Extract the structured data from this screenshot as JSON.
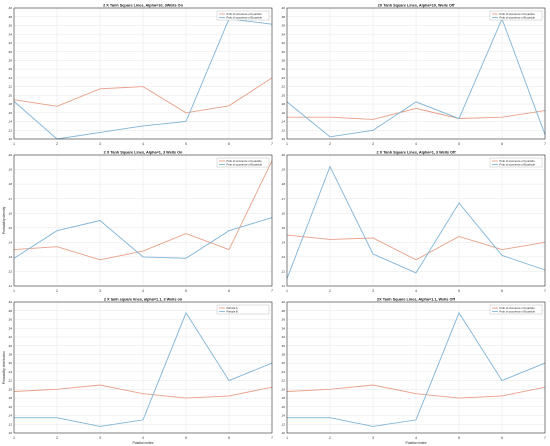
{
  "figure": {
    "background": "#ffffff"
  },
  "colors": {
    "series_a": "#e8a088",
    "series_b": "#7fb4d6",
    "axis": "#333333",
    "grid": "#e6e6e6"
  },
  "chart_data": [
    {
      "type": "line",
      "title": "2 X Tanh Square Lines, Alpha=10, 3Wells On",
      "xlabel": "",
      "ylabel": "",
      "x": [
        1,
        2,
        3,
        4,
        5,
        6,
        7
      ],
      "xlim": [
        1,
        7
      ],
      "ylim": [
        0.1,
        0.4
      ],
      "yticks": [
        0.1,
        0.12,
        0.14,
        0.16,
        0.18,
        0.2,
        0.22,
        0.24,
        0.26,
        0.28,
        0.3,
        0.32,
        0.34,
        0.36,
        0.38,
        0.4
      ],
      "grid": true,
      "legend": "top-right",
      "series": [
        {
          "name": "Prob of occurence of A particle",
          "color": "#e8a088",
          "values": [
            0.19,
            0.175,
            0.215,
            0.22,
            0.16,
            0.176,
            0.24
          ]
        },
        {
          "name": "Prob of occurence of B particle",
          "color": "#7fb4d6",
          "values": [
            0.186,
            0.1,
            0.115,
            0.13,
            0.14,
            0.375,
            0.363
          ]
        }
      ]
    },
    {
      "type": "line",
      "title": "2X Tanh Square Lines, Alpha=10, Wells Off",
      "xlabel": "",
      "ylabel": "",
      "x": [
        1,
        2,
        3,
        4,
        5,
        6,
        7
      ],
      "xlim": [
        1,
        7
      ],
      "ylim": [
        0.1,
        0.4
      ],
      "yticks": [
        0.1,
        0.12,
        0.14,
        0.16,
        0.18,
        0.2,
        0.22,
        0.24,
        0.26,
        0.28,
        0.3,
        0.32,
        0.34,
        0.36,
        0.38,
        0.4
      ],
      "grid": true,
      "legend": "top-right",
      "series": [
        {
          "name": "Prob of occurence of A particle",
          "color": "#e8a088",
          "values": [
            0.15,
            0.15,
            0.145,
            0.17,
            0.147,
            0.15,
            0.165
          ]
        },
        {
          "name": "Prob of occurence of B particle",
          "color": "#7fb4d6",
          "values": [
            0.185,
            0.105,
            0.12,
            0.185,
            0.147,
            0.375,
            0.11
          ]
        }
      ]
    },
    {
      "type": "line",
      "title": "2 X Tanh Square Lines, Alpha=1, 3 Wells On",
      "xlabel": "",
      "ylabel": "Probability density",
      "x": [
        1,
        2,
        3,
        4,
        5,
        6,
        7
      ],
      "xlim": [
        1,
        7
      ],
      "ylim": [
        0.11,
        0.2
      ],
      "yticks": [
        0.11,
        0.12,
        0.13,
        0.14,
        0.15,
        0.16,
        0.17,
        0.18,
        0.19,
        0.2
      ],
      "grid": true,
      "legend": "top-right",
      "series": [
        {
          "name": "Prob of occurence of A particle",
          "color": "#e8a088",
          "values": [
            0.135,
            0.137,
            0.128,
            0.134,
            0.146,
            0.135,
            0.196
          ]
        },
        {
          "name": "Prob of occurence of B particle",
          "color": "#7fb4d6",
          "values": [
            0.129,
            0.148,
            0.155,
            0.13,
            0.129,
            0.148,
            0.157
          ]
        }
      ]
    },
    {
      "type": "line",
      "title": "2 X Tanh Square Lines, Alpha=1, 3 Wells Off",
      "xlabel": "",
      "ylabel": "",
      "x": [
        1,
        2,
        3,
        4,
        5,
        6,
        7
      ],
      "xlim": [
        1,
        7
      ],
      "ylim": [
        0.11,
        0.2
      ],
      "yticks": [
        0.11,
        0.12,
        0.13,
        0.14,
        0.15,
        0.16,
        0.17,
        0.18,
        0.19,
        0.2
      ],
      "grid": true,
      "legend": "top-right",
      "series": [
        {
          "name": "Prob of occurence of A particle",
          "color": "#e8a088",
          "values": [
            0.145,
            0.142,
            0.143,
            0.128,
            0.144,
            0.135,
            0.14
          ]
        },
        {
          "name": "Prob of occurence of B particle",
          "color": "#7fb4d6",
          "values": [
            0.115,
            0.192,
            0.132,
            0.119,
            0.167,
            0.131,
            0.121
          ]
        }
      ]
    },
    {
      "type": "line",
      "title": "2 X tanh square lines, alpha=1.1, 3 Wells on",
      "xlabel": "Position index",
      "ylabel": "Probability distribution",
      "x": [
        1,
        2,
        3,
        4,
        5,
        6,
        7
      ],
      "xlim": [
        1,
        7
      ],
      "ylim": [
        0.1,
        0.4
      ],
      "yticks": [
        0.1,
        0.12,
        0.14,
        0.16,
        0.18,
        0.2,
        0.22,
        0.24,
        0.26,
        0.28,
        0.3,
        0.32,
        0.34,
        0.36,
        0.38,
        0.4
      ],
      "grid": true,
      "legend": "top-right",
      "series": [
        {
          "name": "Particle A",
          "color": "#e8a088",
          "values": [
            0.195,
            0.2,
            0.21,
            0.19,
            0.18,
            0.185,
            0.205
          ]
        },
        {
          "name": "Particle B",
          "color": "#7fb4d6",
          "values": [
            0.135,
            0.135,
            0.115,
            0.13,
            0.375,
            0.22,
            0.26
          ]
        }
      ]
    },
    {
      "type": "line",
      "title": "2X Tanh Square Lines, Alpha=1.1, Wells Off",
      "xlabel": "Position index",
      "ylabel": "",
      "x": [
        1,
        2,
        3,
        4,
        5,
        6,
        7
      ],
      "xlim": [
        1,
        7
      ],
      "ylim": [
        0.1,
        0.4
      ],
      "yticks": [
        0.1,
        0.12,
        0.14,
        0.16,
        0.18,
        0.2,
        0.22,
        0.24,
        0.26,
        0.28,
        0.3,
        0.32,
        0.34,
        0.36,
        0.38,
        0.4
      ],
      "grid": true,
      "legend": "top-right",
      "series": [
        {
          "name": "Prob of occurence of A particle",
          "color": "#e8a088",
          "values": [
            0.195,
            0.2,
            0.21,
            0.19,
            0.18,
            0.185,
            0.205
          ]
        },
        {
          "name": "Prob of occurence of B particle",
          "color": "#7fb4d6",
          "values": [
            0.135,
            0.135,
            0.115,
            0.13,
            0.375,
            0.22,
            0.26
          ]
        }
      ]
    }
  ]
}
